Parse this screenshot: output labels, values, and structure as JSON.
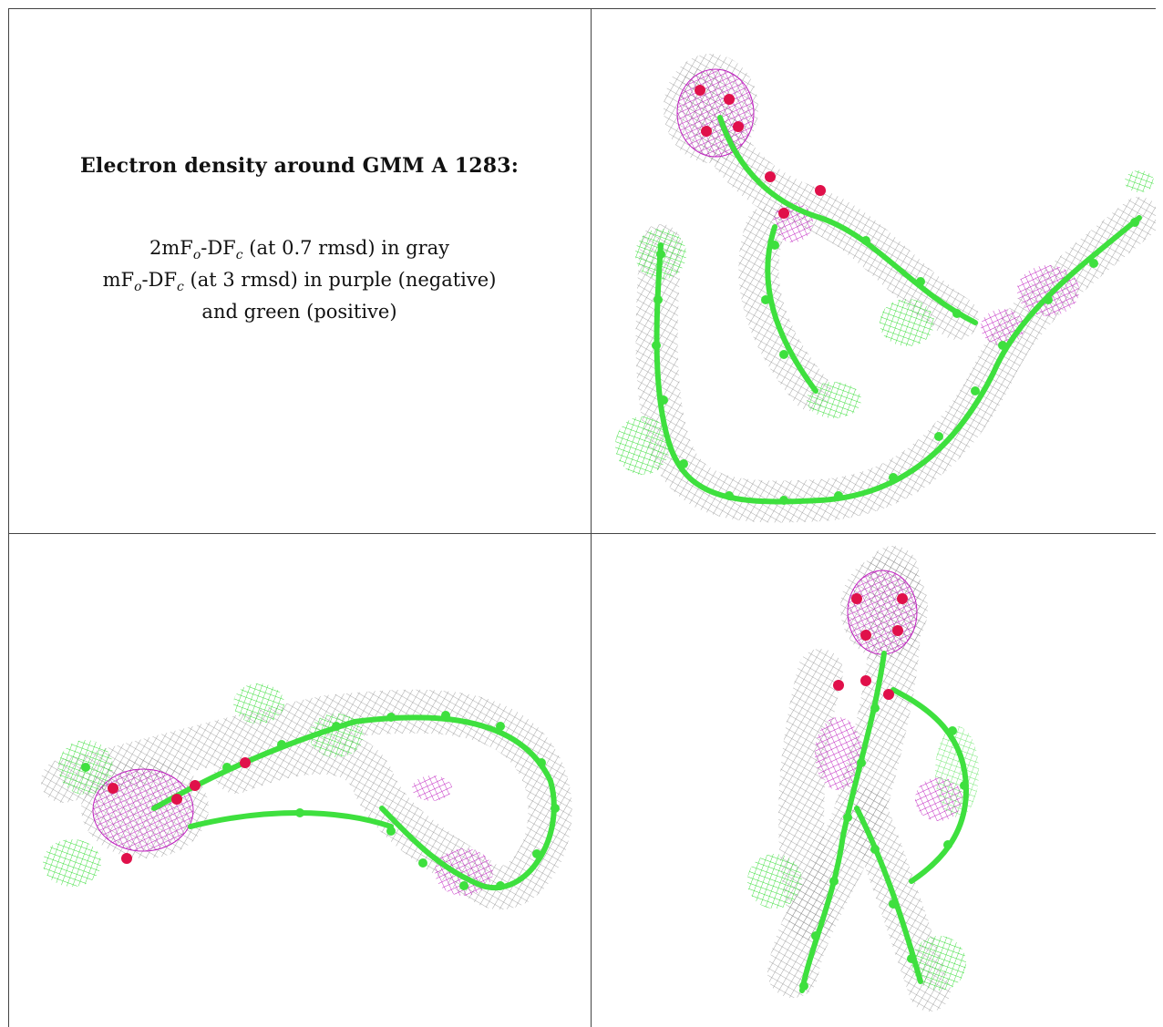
{
  "title": "Electron density around GMM A 1283:",
  "legend": {
    "line1": {
      "pre": "2mF",
      "sub1": "o",
      "mid": "-DF",
      "sub2": "c",
      "post": " (at 0.7 rmsd) in gray"
    },
    "line2": {
      "pre": "mF",
      "sub1": "o",
      "mid": "-DF",
      "sub2": "c",
      "post": " (at 3 rmsd) in purple (negative)"
    },
    "line3": "and green (positive)"
  },
  "colors": {
    "mesh_gray": "#9a9a9a",
    "model_green": "#3ee03e",
    "diff_positive": "#33dd33",
    "diff_negative": "#c020c0",
    "oxygen": "#e0104a"
  },
  "panels": [
    {
      "view": "top-right"
    },
    {
      "view": "bottom-left"
    },
    {
      "view": "bottom-right"
    }
  ]
}
